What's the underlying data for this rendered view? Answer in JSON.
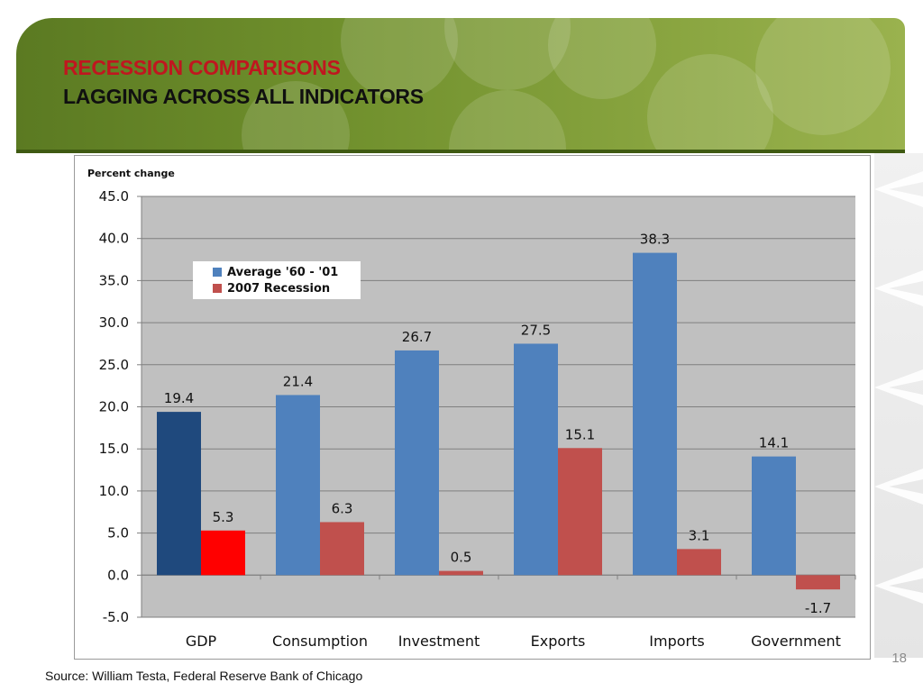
{
  "header": {
    "title_line1": "RECESSION COMPARISONS",
    "title_line2": "LAGGING ACROSS ALL INDICATORS"
  },
  "footer": {
    "source": "Source: William Testa, Federal Reserve Bank of Chicago",
    "page_number": "18"
  },
  "colors": {
    "series_blue": "#4f81bd",
    "series_red": "#c0504d",
    "gdp_blue": "#1f497d",
    "gdp_red": "#ff0000",
    "plot_bg": "#c0c0c0",
    "title_red": "#c0161f"
  },
  "chart_data": {
    "type": "bar",
    "ylabel": "Percent change",
    "categories": [
      "GDP",
      "Consumption",
      "Investment",
      "Exports",
      "Imports",
      "Government"
    ],
    "series": [
      {
        "name": "Average '60 - '01",
        "values": [
          19.4,
          21.4,
          26.7,
          27.5,
          38.3,
          14.1
        ]
      },
      {
        "name": "2007 Recession",
        "values": [
          5.3,
          6.3,
          0.5,
          15.1,
          3.1,
          -1.7
        ]
      }
    ],
    "data_labels": [
      [
        "19.4",
        "21.4",
        "26.7",
        "27.5",
        "38.3",
        "14.1"
      ],
      [
        "5.3",
        "6.3",
        "0.5",
        "15.1",
        "3.1",
        "-1.7"
      ]
    ],
    "y_ticks": [
      "45.0",
      "40.0",
      "35.0",
      "30.0",
      "25.0",
      "20.0",
      "15.0",
      "10.0",
      "5.0",
      "0.0",
      "-5.0"
    ],
    "ylim": [
      -5,
      45
    ],
    "grid": true,
    "legend_position": "top-left"
  }
}
